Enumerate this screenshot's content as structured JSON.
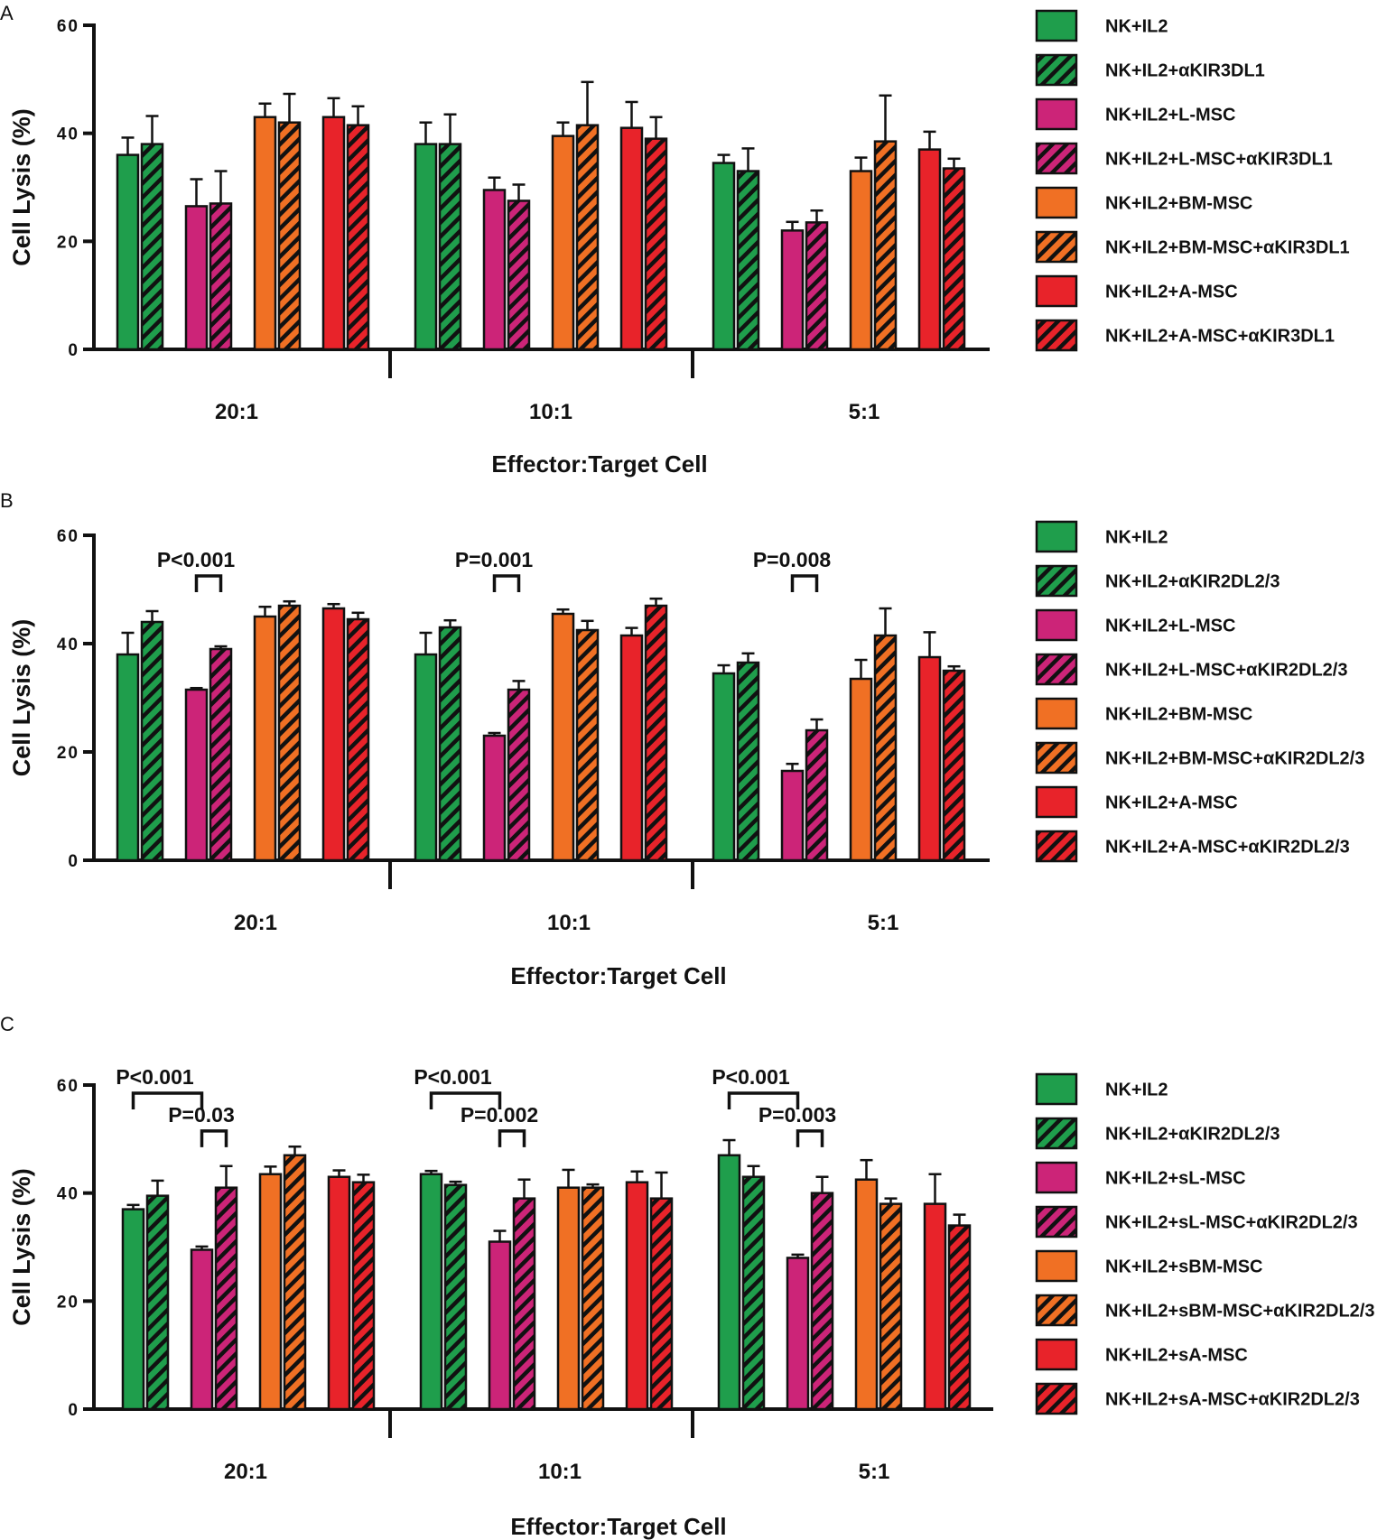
{
  "colors": {
    "green": "#1f9e4c",
    "magenta": "#cc2478",
    "orange": "#f07024",
    "red": "#e8232a",
    "axis": "#111111"
  },
  "chart_data": [
    {
      "panel_label": "A",
      "type": "bar",
      "categories": [
        "20:1",
        "10:1",
        "5:1"
      ],
      "xlabel": "Effector:Target Cell",
      "ylabel": "Cell Lysis (%)",
      "ylim": [
        0,
        60
      ],
      "yticks": [
        "0",
        "20",
        "40",
        "60"
      ],
      "series": [
        {
          "name": "NK+IL2",
          "color": "green",
          "hatch": false,
          "values": [
            36,
            38,
            34.5
          ],
          "errors": [
            3.2,
            4,
            1.5
          ]
        },
        {
          "name": "NK+IL2+αKIR3DL1",
          "color": "green",
          "hatch": true,
          "values": [
            38,
            38,
            33
          ],
          "errors": [
            5.2,
            5.5,
            4.2
          ]
        },
        {
          "name": "NK+IL2+L-MSC",
          "color": "magenta",
          "hatch": false,
          "values": [
            26.5,
            29.5,
            22
          ],
          "errors": [
            5,
            2.3,
            1.6
          ]
        },
        {
          "name": "NK+IL2+L-MSC+αKIR3DL1",
          "color": "magenta",
          "hatch": true,
          "values": [
            27,
            27.5,
            23.5
          ],
          "errors": [
            6,
            3,
            2.2
          ]
        },
        {
          "name": "NK+IL2+BM-MSC",
          "color": "orange",
          "hatch": false,
          "values": [
            43,
            39.5,
            33
          ],
          "errors": [
            2.5,
            2.5,
            2.5
          ]
        },
        {
          "name": "NK+IL2+BM-MSC+αKIR3DL1",
          "color": "orange",
          "hatch": true,
          "values": [
            42,
            41.5,
            38.5
          ],
          "errors": [
            5.3,
            8,
            8.5
          ]
        },
        {
          "name": "NK+IL2+A-MSC",
          "color": "red",
          "hatch": false,
          "values": [
            43,
            41,
            37
          ],
          "errors": [
            3.5,
            4.8,
            3.3
          ]
        },
        {
          "name": "NK+IL2+A-MSC+αKIR3DL1",
          "color": "red",
          "hatch": true,
          "values": [
            41.5,
            39,
            33.5
          ],
          "errors": [
            3.5,
            4,
            1.8
          ]
        }
      ],
      "annotations": []
    },
    {
      "panel_label": "B",
      "type": "bar",
      "categories": [
        "20:1",
        "10:1",
        "5:1"
      ],
      "xlabel": "Effector:Target Cell",
      "ylabel": "Cell Lysis (%)",
      "ylim": [
        0,
        60
      ],
      "yticks": [
        "0",
        "20",
        "40",
        "60"
      ],
      "series": [
        {
          "name": "NK+IL2",
          "color": "green",
          "hatch": false,
          "values": [
            38,
            38,
            34.5
          ],
          "errors": [
            4,
            4,
            1.5
          ]
        },
        {
          "name": "NK+IL2+αKIR2DL2/3",
          "color": "green",
          "hatch": true,
          "values": [
            44,
            43,
            36.5
          ],
          "errors": [
            2,
            1.3,
            1.7
          ]
        },
        {
          "name": "NK+IL2+L-MSC",
          "color": "magenta",
          "hatch": false,
          "values": [
            31.5,
            23,
            16.5
          ],
          "errors": [
            0.3,
            0.5,
            1.3
          ]
        },
        {
          "name": "NK+IL2+L-MSC+αKIR2DL2/3",
          "color": "magenta",
          "hatch": true,
          "values": [
            39,
            31.5,
            24
          ],
          "errors": [
            0.5,
            1.6,
            2
          ]
        },
        {
          "name": "NK+IL2+BM-MSC",
          "color": "orange",
          "hatch": false,
          "values": [
            45,
            45.5,
            33.5
          ],
          "errors": [
            1.8,
            0.8,
            3.5
          ]
        },
        {
          "name": "NK+IL2+BM-MSC+αKIR2DL2/3",
          "color": "orange",
          "hatch": true,
          "values": [
            47,
            42.5,
            41.5
          ],
          "errors": [
            0.8,
            1.7,
            5
          ]
        },
        {
          "name": "NK+IL2+A-MSC",
          "color": "red",
          "hatch": false,
          "values": [
            46.5,
            41.5,
            37.5
          ],
          "errors": [
            0.8,
            1.4,
            4.6
          ]
        },
        {
          "name": "NK+IL2+A-MSC+αKIR2DL2/3",
          "color": "red",
          "hatch": true,
          "values": [
            44.5,
            47,
            35
          ],
          "errors": [
            1.2,
            1.3,
            0.8
          ]
        }
      ],
      "annotations": [
        {
          "text": "P<0.001",
          "category": 0,
          "from": 2,
          "to": 3,
          "level": 52.5
        },
        {
          "text": "P=0.001",
          "category": 1,
          "from": 2,
          "to": 3,
          "level": 52.5
        },
        {
          "text": "P=0.008",
          "category": 2,
          "from": 2,
          "to": 3,
          "level": 52.5
        }
      ]
    },
    {
      "panel_label": "C",
      "type": "bar",
      "categories": [
        "20:1",
        "10:1",
        "5:1"
      ],
      "xlabel": "Effector:Target Cell",
      "ylabel": "Cell Lysis (%)",
      "ylim": [
        0,
        60
      ],
      "yticks": [
        "0",
        "20",
        "40",
        "60"
      ],
      "series": [
        {
          "name": "NK+IL2",
          "color": "green",
          "hatch": false,
          "values": [
            37,
            43.5,
            47
          ],
          "errors": [
            0.8,
            0.6,
            2.8
          ]
        },
        {
          "name": "NK+IL2+αKIR2DL2/3",
          "color": "green",
          "hatch": true,
          "values": [
            39.5,
            41.5,
            43
          ],
          "errors": [
            2.8,
            0.6,
            2
          ]
        },
        {
          "name": "NK+IL2+sL-MSC",
          "color": "magenta",
          "hatch": false,
          "values": [
            29.5,
            31,
            28
          ],
          "errors": [
            0.6,
            2,
            0.6
          ]
        },
        {
          "name": "NK+IL2+sL-MSC+αKIR2DL2/3",
          "color": "magenta",
          "hatch": true,
          "values": [
            41,
            39,
            40
          ],
          "errors": [
            4,
            3.5,
            3
          ]
        },
        {
          "name": "NK+IL2+sBM-MSC",
          "color": "orange",
          "hatch": false,
          "values": [
            43.5,
            41,
            42.5
          ],
          "errors": [
            1.4,
            3.3,
            3.6
          ]
        },
        {
          "name": "NK+IL2+sBM-MSC+αKIR2DL2/3",
          "color": "orange",
          "hatch": true,
          "values": [
            47,
            41,
            38
          ],
          "errors": [
            1.6,
            0.6,
            1
          ]
        },
        {
          "name": "NK+IL2+sA-MSC",
          "color": "red",
          "hatch": false,
          "values": [
            43,
            42,
            38
          ],
          "errors": [
            1.2,
            2,
            5.5
          ]
        },
        {
          "name": "NK+IL2+sA-MSC+αKIR2DL2/3",
          "color": "red",
          "hatch": true,
          "values": [
            42,
            39,
            34
          ],
          "errors": [
            1.4,
            4.8,
            2
          ]
        }
      ],
      "annotations": [
        {
          "text": "P<0.001",
          "category": 0,
          "from": 0,
          "to": 2,
          "level": 58.5
        },
        {
          "text": "P=0.03",
          "category": 0,
          "from": 2,
          "to": 3,
          "level": 51.5
        },
        {
          "text": "P<0.001",
          "category": 1,
          "from": 0,
          "to": 2,
          "level": 58.5
        },
        {
          "text": "P=0.002",
          "category": 1,
          "from": 2,
          "to": 3,
          "level": 51.5
        },
        {
          "text": "P<0.001",
          "category": 2,
          "from": 0,
          "to": 2,
          "level": 58.5
        },
        {
          "text": "P=0.003",
          "category": 2,
          "from": 2,
          "to": 3,
          "level": 51.5
        }
      ]
    }
  ]
}
